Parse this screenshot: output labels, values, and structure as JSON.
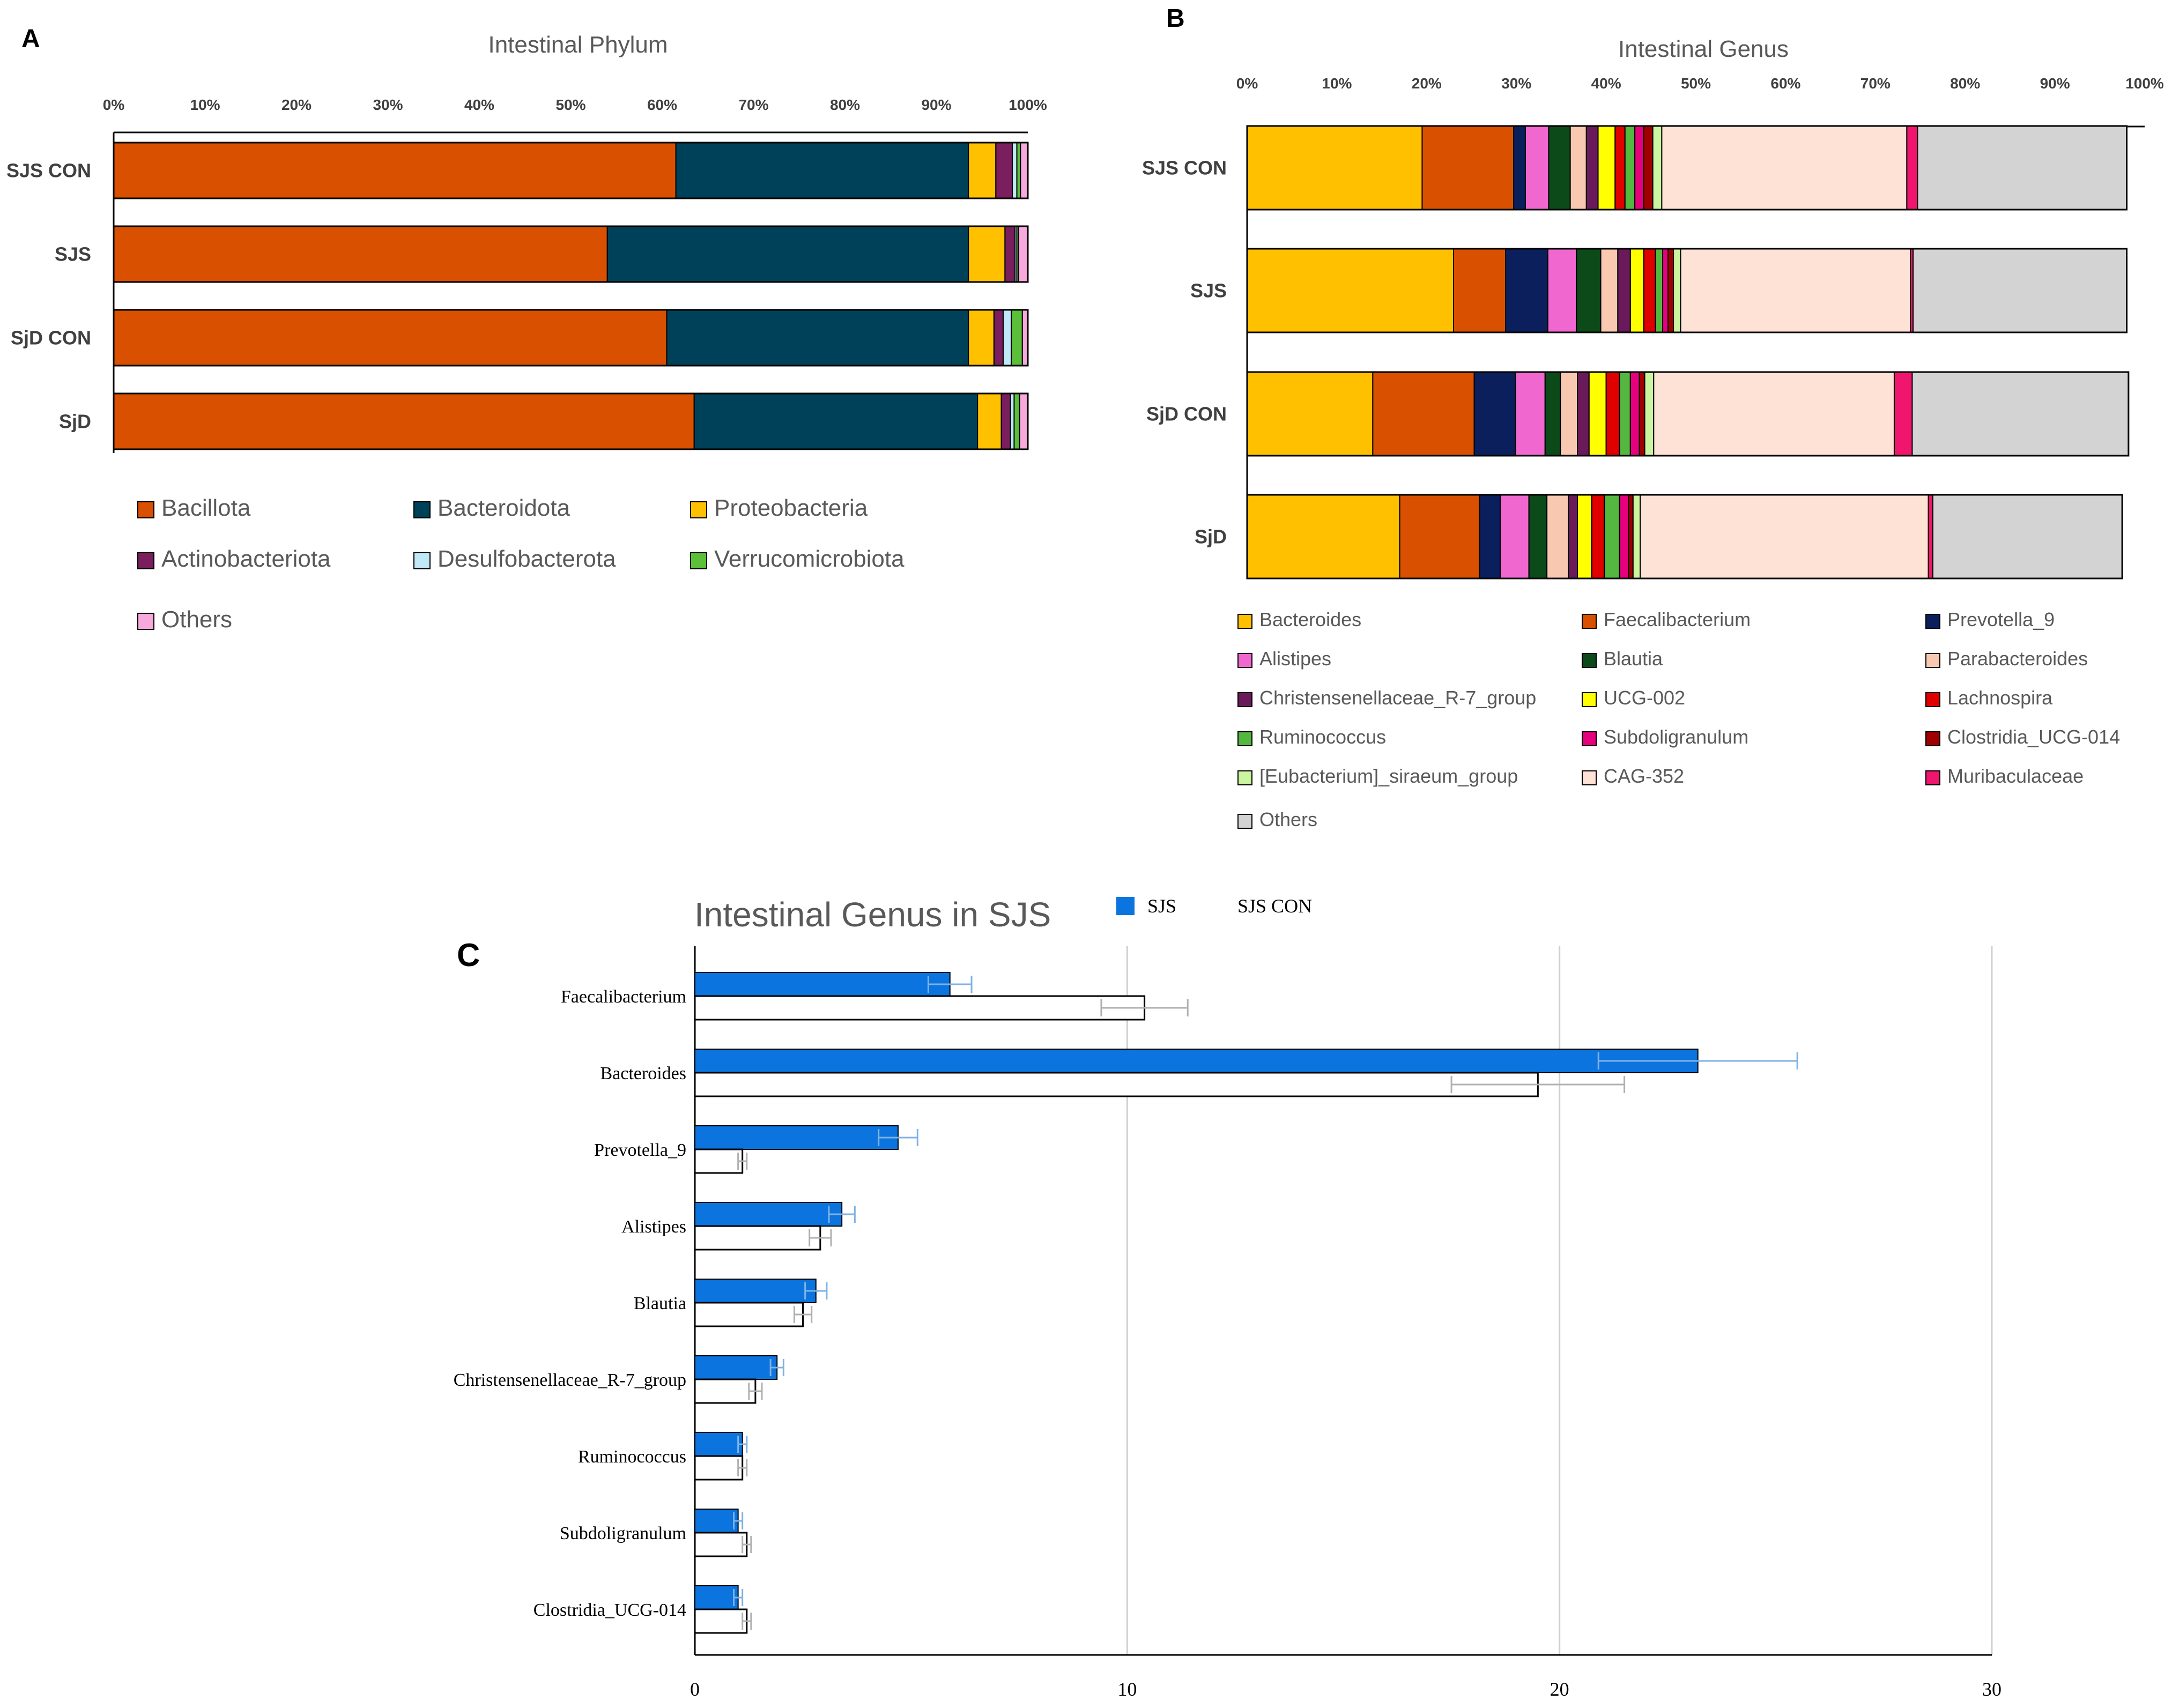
{
  "panel_labels": [
    "A",
    "B",
    "C"
  ],
  "chart_data": [
    {
      "type": "bar",
      "orientation": "horizontal-stacked-percent",
      "title": "Intestinal Phylum",
      "xlim": [
        0,
        100
      ],
      "xticks": [
        "0%",
        "10%",
        "20%",
        "30%",
        "40%",
        "50%",
        "60%",
        "70%",
        "80%",
        "90%",
        "100%"
      ],
      "categories": [
        "SJS CON",
        "SJS",
        "SjD CON",
        "SjD"
      ],
      "legend_position": "bottom",
      "series": [
        {
          "name": "Bacillota",
          "color": "#d95000",
          "values": [
            61.5,
            54.0,
            60.5,
            63.5
          ]
        },
        {
          "name": "Bacteroidota",
          "color": "#00415a",
          "values": [
            32.0,
            39.5,
            33.0,
            31.0
          ]
        },
        {
          "name": "Proteobacteria",
          "color": "#ffc000",
          "values": [
            3.0,
            4.0,
            2.8,
            2.6
          ]
        },
        {
          "name": "Actinobacteriota",
          "color": "#7a1e5e",
          "values": [
            1.8,
            1.1,
            1.0,
            1.0
          ]
        },
        {
          "name": "Desulfobacterota",
          "color": "#bfe9f7",
          "values": [
            0.5,
            0.2,
            0.9,
            0.4
          ]
        },
        {
          "name": "Verrucomicrobiota",
          "color": "#5bbf3a",
          "values": [
            0.4,
            0.2,
            1.2,
            0.6
          ]
        },
        {
          "name": "Others",
          "color": "#f7a8dd",
          "values": [
            0.8,
            1.0,
            0.6,
            0.9
          ]
        }
      ]
    },
    {
      "type": "bar",
      "orientation": "horizontal-stacked-percent",
      "title": "Intestinal Genus",
      "xlim": [
        0,
        100
      ],
      "xticks": [
        "0%",
        "10%",
        "20%",
        "30%",
        "40%",
        "50%",
        "60%",
        "70%",
        "80%",
        "90%",
        "100%"
      ],
      "categories": [
        "SJS CON",
        "SJS",
        "SjD CON",
        "SjD"
      ],
      "legend_position": "bottom",
      "series": [
        {
          "name": "Bacteroides",
          "color": "#ffc000",
          "values": [
            19.5,
            23.0,
            14.0,
            17.0
          ]
        },
        {
          "name": "Faecalibacterium",
          "color": "#d95000",
          "values": [
            10.2,
            5.8,
            11.3,
            8.9
          ]
        },
        {
          "name": "Prevotella_9",
          "color": "#0b1f5c",
          "values": [
            1.3,
            4.7,
            4.6,
            2.3
          ]
        },
        {
          "name": "Alistipes",
          "color": "#f068cf",
          "values": [
            2.6,
            3.2,
            3.3,
            3.2
          ]
        },
        {
          "name": "Blautia",
          "color": "#0c4a1a",
          "values": [
            2.4,
            2.7,
            1.7,
            2.0
          ]
        },
        {
          "name": "Parabacteroides",
          "color": "#f9c8b0",
          "values": [
            1.8,
            1.9,
            1.9,
            2.4
          ]
        },
        {
          "name": "Christensenellaceae_R-7_group",
          "color": "#6a1a5a",
          "values": [
            1.3,
            1.4,
            1.3,
            1.0
          ]
        },
        {
          "name": "UCG-002",
          "color": "#ffff00",
          "values": [
            1.9,
            1.5,
            1.9,
            1.6
          ]
        },
        {
          "name": "Lachnospira",
          "color": "#e00000",
          "values": [
            1.1,
            1.3,
            1.5,
            1.4
          ]
        },
        {
          "name": "Ruminococcus",
          "color": "#54b840",
          "values": [
            1.1,
            0.8,
            1.2,
            1.7
          ]
        },
        {
          "name": "Subdoligranulum",
          "color": "#e6007e",
          "values": [
            1.0,
            0.6,
            1.0,
            1.0
          ]
        },
        {
          "name": "Clostridia_UCG-014",
          "color": "#a00000",
          "values": [
            1.0,
            0.6,
            0.6,
            0.5
          ]
        },
        {
          "name": "[Eubacterium]_siraeum_group",
          "color": "#ccf5a0",
          "values": [
            1.0,
            0.8,
            1.0,
            0.8
          ]
        },
        {
          "name": "CAG-352",
          "color": "#ffe2d6",
          "values": [
            27.3,
            25.6,
            26.8,
            32.1
          ]
        },
        {
          "name": "Muribaculaceae",
          "color": "#f0166e",
          "values": [
            1.2,
            0.3,
            2.0,
            0.5
          ]
        },
        {
          "name": "Others",
          "color": "#d3d3d3",
          "values": [
            23.3,
            23.8,
            24.1,
            21.1
          ]
        }
      ]
    },
    {
      "type": "bar",
      "orientation": "horizontal-grouped",
      "title": "Intestinal Genus in SJS",
      "xlim": [
        0,
        30
      ],
      "xticks": [
        "0",
        "10",
        "20",
        "30"
      ],
      "grid": true,
      "legend_position": "top",
      "categories": [
        "Faecalibacterium",
        "Bacteroides",
        "Prevotella_9",
        "Alistipes",
        "Blautia",
        "Christensenellaceae_R-7_group",
        "Ruminococcus",
        "Subdoligranulum",
        "Clostridia_UCG-014"
      ],
      "series": [
        {
          "name": "SJS",
          "color": "#0b74de",
          "values": [
            5.9,
            23.2,
            4.7,
            3.4,
            2.8,
            1.9,
            1.1,
            1.0,
            1.0
          ],
          "errors": [
            0.5,
            2.3,
            0.45,
            0.3,
            0.25,
            0.15,
            0.1,
            0.1,
            0.1
          ]
        },
        {
          "name": "SJS CON",
          "color": "#ffffff",
          "values": [
            10.4,
            19.5,
            1.1,
            2.9,
            2.5,
            1.4,
            1.1,
            1.2,
            1.2
          ],
          "errors": [
            1.0,
            2.0,
            0.1,
            0.25,
            0.2,
            0.15,
            0.1,
            0.1,
            0.1
          ]
        }
      ]
    }
  ]
}
